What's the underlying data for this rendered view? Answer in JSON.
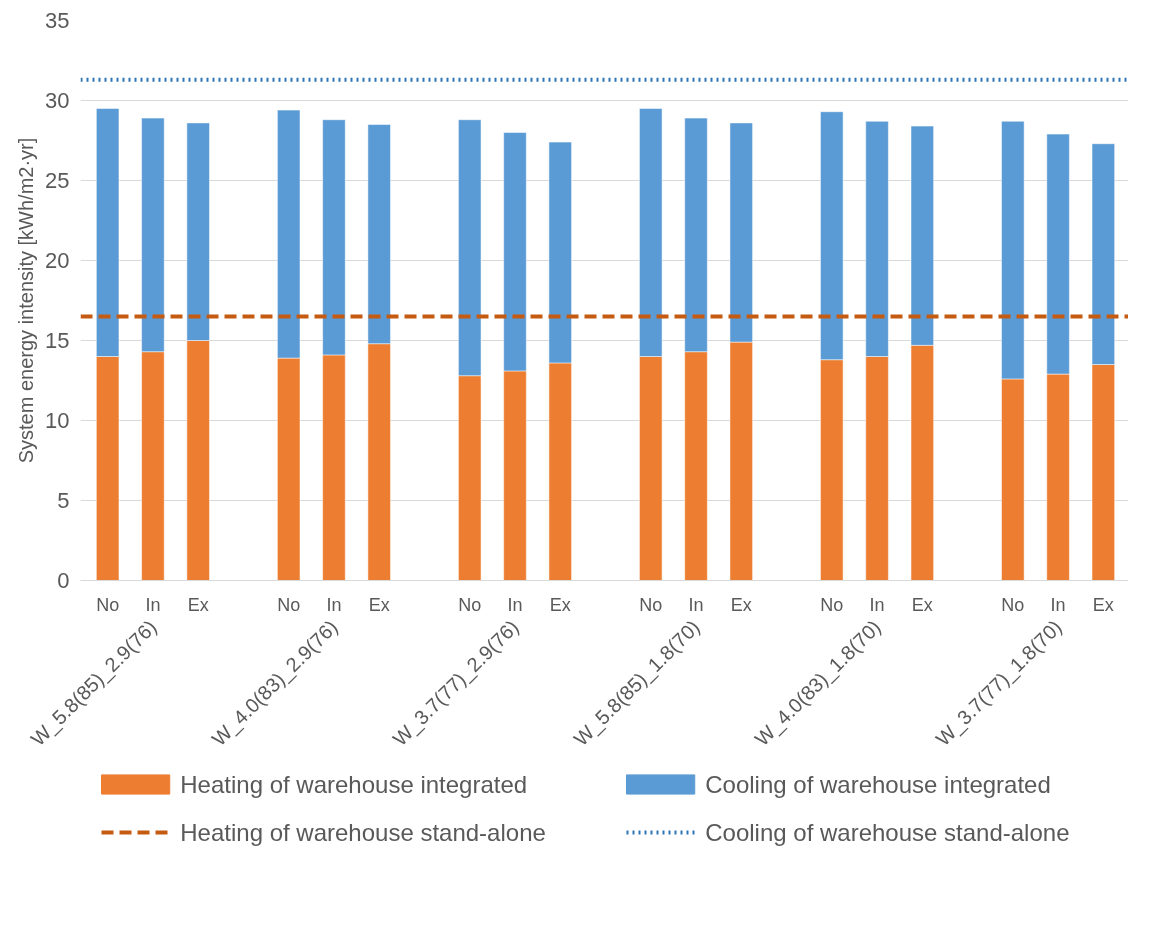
{
  "chart_data": {
    "type": "bar",
    "stacked": true,
    "ylabel": "System energy intensity [kWh/m2·yr]",
    "categories": [
      "No",
      "In",
      "Ex",
      null,
      "No",
      "In",
      "Ex",
      null,
      "No",
      "In",
      "Ex",
      null,
      "No",
      "In",
      "Ex",
      null,
      "No",
      "In",
      "Ex",
      null,
      "No",
      "In",
      "Ex"
    ],
    "series": [
      {
        "name": "Heating of warehouse integrated",
        "color": "#ed7d31",
        "values": [
          14.0,
          14.3,
          15.0,
          null,
          13.9,
          14.1,
          14.8,
          null,
          12.8,
          13.1,
          13.6,
          null,
          14.0,
          14.3,
          14.9,
          null,
          13.8,
          14.0,
          14.7,
          null,
          12.6,
          12.9,
          13.5
        ]
      },
      {
        "name": "Cooling of warehouse integrated",
        "color": "#5b9bd5",
        "values": [
          15.5,
          14.6,
          13.6,
          null,
          15.5,
          14.7,
          13.7,
          null,
          16.0,
          14.9,
          13.8,
          null,
          15.5,
          14.6,
          13.7,
          null,
          15.5,
          14.7,
          13.7,
          null,
          16.1,
          15.0,
          13.8
        ]
      }
    ],
    "ref_lines": [
      {
        "axis": "y",
        "value": 16.5,
        "label": "Heating of warehouse stand-alone",
        "color": "#c55a11",
        "line_style": "dashed"
      },
      {
        "axis": "y",
        "value": 31.3,
        "label": "Cooling of warehouse stand-alone",
        "color": "#2e75b6",
        "line_style": "dotted"
      }
    ],
    "annotations": [
      "W_5.8(85)_2.9(76)",
      "W_4.0(83)_2.9(76)",
      "W_3.7(77)_2.9(76)",
      "W_5.8(85)_1.8(70)",
      "W_4.0(83)_1.8(70)",
      "W_3.7(77)_1.8(70)"
    ],
    "ylim": [
      0,
      35
    ],
    "yticks": [
      0,
      5,
      10,
      15,
      20,
      25,
      30,
      35
    ],
    "grid": "y",
    "legend": "bottom"
  }
}
